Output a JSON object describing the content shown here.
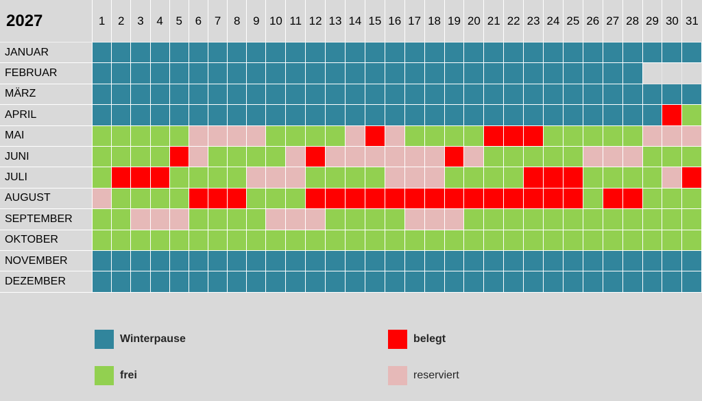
{
  "year": "2027",
  "days": [
    "1",
    "2",
    "3",
    "4",
    "5",
    "6",
    "7",
    "8",
    "9",
    "10",
    "11",
    "12",
    "13",
    "14",
    "15",
    "16",
    "17",
    "18",
    "19",
    "20",
    "21",
    "22",
    "23",
    "24",
    "25",
    "26",
    "27",
    "28",
    "29",
    "30",
    "31"
  ],
  "colors": {
    "W": "#31859c",
    "F": "#92d050",
    "B": "#ff0000",
    "R": "#e6b9b8",
    "X": "#d9d9d9"
  },
  "months": [
    {
      "name": "JANUAR",
      "days": "WWWWWWWWWWWWWWWWWWWWWWWWWWWWWWW"
    },
    {
      "name": "FEBRUAR",
      "days": "WWWWWWWWWWWWWWWWWWWWWWWWWWWWXXX"
    },
    {
      "name": "MÄRZ",
      "days": "WWWWWWWWWWWWWWWWWWWWWWWWWWWWWWW"
    },
    {
      "name": "APRIL",
      "days": "WWWWWWWWWWWWWWWWWWWWWWWWWWWWWBF"
    },
    {
      "name": "MAI",
      "days": "FFFFFRRRRFFFFRBRFFFFBBBFFFFFRRR"
    },
    {
      "name": "JUNI",
      "days": "FFFFBRFFFFRBRRRRRRBRFFFFFRRRFFF"
    },
    {
      "name": "JULI",
      "days": "FBBBFFFFRRRFFFFRRRFFFFBBBFFFFRB"
    },
    {
      "name": "AUGUST",
      "days": "RFFFFBBBFFFBBBBBBBBBBBBBBFBBFFF"
    },
    {
      "name": "SEPTEMBER",
      "days": "FFRRRFFFFRRRFFFFRRRFFFFFFFFFFFF"
    },
    {
      "name": "OKTOBER",
      "days": "FFFFFFFFFFFFFFFFFFFFFFFFFFFFFFF"
    },
    {
      "name": "NOVEMBER",
      "days": "WWWWWWWWWWWWWWWWWWWWWWWWWWWWWWW"
    },
    {
      "name": "DEZEMBER",
      "days": "WWWWWWWWWWWWWWWWWWWWWWWWWWWWWWW"
    }
  ],
  "legend": {
    "winterpause": {
      "label": "Winterpause",
      "color": "#31859c"
    },
    "belegt": {
      "label": "belegt",
      "color": "#ff0000"
    },
    "frei": {
      "label": "frei",
      "color": "#92d050"
    },
    "reserviert": {
      "label": "reserviert",
      "color": "#e6b9b8"
    }
  }
}
